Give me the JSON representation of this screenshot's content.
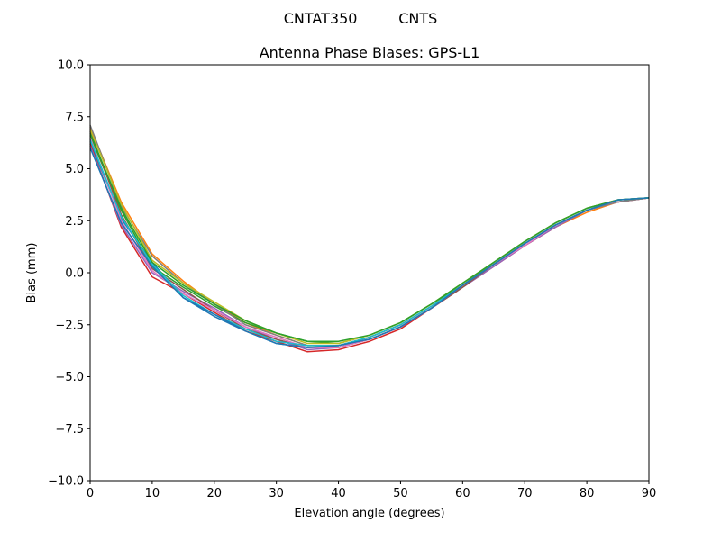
{
  "chart_data": {
    "type": "line",
    "suptitle": "CNTAT350         CNTS",
    "title": "Antenna Phase Biases: GPS-L1",
    "xlabel": "Elevation angle (degrees)",
    "ylabel": "Bias (mm)",
    "xlim": [
      0,
      90
    ],
    "ylim": [
      -10,
      10
    ],
    "xticks": [
      0,
      10,
      20,
      30,
      40,
      50,
      60,
      70,
      80,
      90
    ],
    "yticks": [
      -10.0,
      -7.5,
      -5.0,
      -2.5,
      0.0,
      2.5,
      5.0,
      7.5,
      10.0
    ],
    "ytick_labels": [
      "−10.0",
      "−7.5",
      "−5.0",
      "−2.5",
      "0.0",
      "2.5",
      "5.0",
      "7.5",
      "10.0"
    ],
    "grid": false,
    "x": [
      0,
      5,
      10,
      15,
      20,
      25,
      30,
      35,
      40,
      45,
      50,
      55,
      60,
      65,
      70,
      75,
      80,
      85,
      90
    ],
    "series": [
      {
        "color": "#1f77b4",
        "values": [
          6.3,
          2.6,
          0.5,
          -1.2,
          -2.1,
          -2.8,
          -3.4,
          -3.6,
          -3.5,
          -3.2,
          -2.6,
          -1.7,
          -0.6,
          0.4,
          1.4,
          2.3,
          3.0,
          3.5,
          3.6
        ]
      },
      {
        "color": "#ff7f0e",
        "values": [
          7.0,
          3.4,
          0.9,
          -0.4,
          -1.5,
          -2.4,
          -3.0,
          -3.5,
          -3.5,
          -3.1,
          -2.5,
          -1.6,
          -0.6,
          0.4,
          1.3,
          2.2,
          2.9,
          3.4,
          3.6
        ]
      },
      {
        "color": "#2ca02c",
        "values": [
          6.6,
          3.0,
          0.3,
          -0.7,
          -1.6,
          -2.4,
          -2.9,
          -3.3,
          -3.4,
          -3.0,
          -2.4,
          -1.5,
          -0.6,
          0.5,
          1.5,
          2.4,
          3.1,
          3.5,
          3.6
        ]
      },
      {
        "color": "#d62728",
        "values": [
          6.2,
          2.2,
          -0.2,
          -1.0,
          -1.9,
          -2.8,
          -3.3,
          -3.8,
          -3.7,
          -3.3,
          -2.7,
          -1.7,
          -0.7,
          0.3,
          1.3,
          2.2,
          3.0,
          3.4,
          3.6
        ]
      },
      {
        "color": "#9467bd",
        "values": [
          6.1,
          2.3,
          0.0,
          -0.9,
          -1.7,
          -2.6,
          -3.2,
          -3.7,
          -3.6,
          -3.2,
          -2.6,
          -1.7,
          -0.7,
          0.3,
          1.3,
          2.2,
          3.0,
          3.4,
          3.6
        ]
      },
      {
        "color": "#8c564b",
        "values": [
          6.8,
          2.8,
          0.2,
          -0.8,
          -1.8,
          -2.7,
          -3.2,
          -3.6,
          -3.6,
          -3.2,
          -2.6,
          -1.7,
          -0.7,
          0.4,
          1.4,
          2.3,
          3.0,
          3.4,
          3.6
        ]
      },
      {
        "color": "#e377c2",
        "values": [
          6.5,
          2.5,
          0.1,
          -1.0,
          -1.8,
          -2.6,
          -3.1,
          -3.6,
          -3.6,
          -3.2,
          -2.6,
          -1.7,
          -0.6,
          0.4,
          1.3,
          2.3,
          3.0,
          3.4,
          3.6
        ]
      },
      {
        "color": "#7f7f7f",
        "values": [
          7.1,
          3.2,
          0.8,
          -0.5,
          -1.5,
          -2.5,
          -3.0,
          -3.5,
          -3.5,
          -3.1,
          -2.5,
          -1.6,
          -0.6,
          0.4,
          1.4,
          2.3,
          3.0,
          3.4,
          3.6
        ]
      },
      {
        "color": "#bcbd22",
        "values": [
          6.9,
          3.3,
          0.6,
          -0.5,
          -1.4,
          -2.3,
          -2.9,
          -3.4,
          -3.4,
          -3.0,
          -2.4,
          -1.5,
          -0.5,
          0.5,
          1.5,
          2.4,
          3.1,
          3.5,
          3.6
        ]
      },
      {
        "color": "#17becf",
        "values": [
          6.4,
          2.7,
          0.4,
          -1.1,
          -2.0,
          -2.7,
          -3.3,
          -3.5,
          -3.5,
          -3.1,
          -2.5,
          -1.6,
          -0.6,
          0.4,
          1.4,
          2.3,
          3.0,
          3.5,
          3.6
        ]
      },
      {
        "color": "#2ca02c",
        "values": [
          6.7,
          3.1,
          0.5,
          -0.6,
          -1.5,
          -2.3,
          -2.9,
          -3.3,
          -3.3,
          -3.0,
          -2.4,
          -1.5,
          -0.5,
          0.5,
          1.5,
          2.4,
          3.1,
          3.5,
          3.6
        ]
      },
      {
        "color": "#1f77b4",
        "values": [
          6.0,
          2.4,
          0.3,
          -1.2,
          -2.0,
          -2.8,
          -3.4,
          -3.6,
          -3.5,
          -3.2,
          -2.6,
          -1.7,
          -0.6,
          0.4,
          1.4,
          2.3,
          3.0,
          3.5,
          3.6
        ]
      }
    ]
  }
}
